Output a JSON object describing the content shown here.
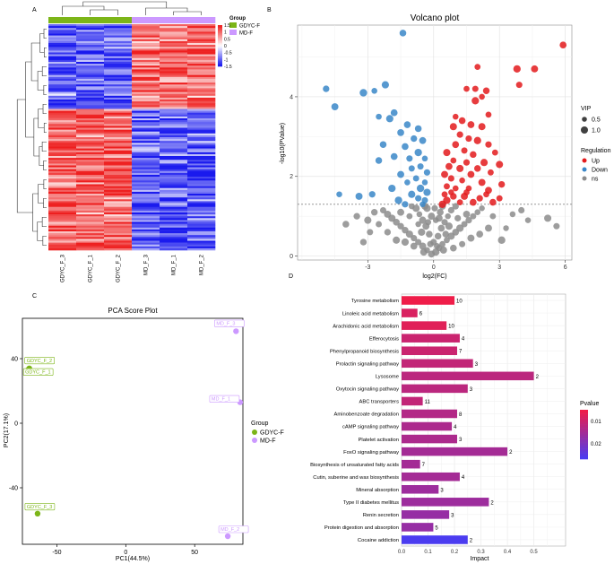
{
  "panel_labels": {
    "A": "A",
    "B": "B",
    "C": "C",
    "D": "D"
  },
  "colors": {
    "gdyc": "#7cb518",
    "md": "#cc99ff",
    "up": "#e31a1c",
    "down": "#3a87c8",
    "ns": "#8c8c8c",
    "heat_high": "#ee1f1f",
    "heat_low": "#1a1aee",
    "bar_low_p": "#ef1d49",
    "bar_high_p": "#4b3cf0"
  },
  "chart_data": [
    {
      "type": "heatmap",
      "columns": [
        "GDYC_F_3",
        "GDYC_F_1",
        "GDYC_F_2",
        "MD_F_3",
        "MD_F_1",
        "MD_F_2"
      ],
      "column_groups": [
        "GDYC-F",
        "GDYC-F",
        "GDYC-F",
        "MD-F",
        "MD-F",
        "MD-F"
      ],
      "legend_title": "Group",
      "groups": [
        "GDYC-F",
        "MD-F"
      ],
      "scale_ticks": [
        "1.5",
        "1",
        "0.5",
        "0",
        "-0.5",
        "-1",
        "-1.5"
      ],
      "scale_range": [
        -1.5,
        1.5
      ],
      "row_count": 120
    },
    {
      "type": "scatter",
      "title": "Volcano plot",
      "xlabel": "log2(FC)",
      "ylabel": "-log10(PValue)",
      "xlim": [
        -6.2,
        6.3
      ],
      "ylim": [
        -0.1,
        5.8
      ],
      "xticks": [
        -3,
        0,
        3,
        6
      ],
      "yticks": [
        0,
        2,
        4
      ],
      "threshold_y": 1.3,
      "size_legend_title": "VIP",
      "size_legend": [
        "0.5",
        "1.0"
      ],
      "color_legend_title": "Regulation",
      "color_legend": [
        "Up",
        "Down",
        "ns"
      ],
      "up_points": [
        [
          5.9,
          5.3
        ],
        [
          3.8,
          4.7
        ],
        [
          4.6,
          4.7
        ],
        [
          3.9,
          4.3
        ],
        [
          2.0,
          4.75
        ],
        [
          2.4,
          4.15
        ],
        [
          1.9,
          4.2
        ],
        [
          2.2,
          4.0
        ],
        [
          1.5,
          4.2
        ],
        [
          1.9,
          3.9
        ],
        [
          2.5,
          3.55
        ],
        [
          1.0,
          3.5
        ],
        [
          1.3,
          3.4
        ],
        [
          0.9,
          3.25
        ],
        [
          1.7,
          3.3
        ],
        [
          2.2,
          3.25
        ],
        [
          1.2,
          3.05
        ],
        [
          1.6,
          2.95
        ],
        [
          2.0,
          2.9
        ],
        [
          2.5,
          2.8
        ],
        [
          1.0,
          2.8
        ],
        [
          1.4,
          2.65
        ],
        [
          2.8,
          2.6
        ],
        [
          0.6,
          2.6
        ],
        [
          1.8,
          2.55
        ],
        [
          0.9,
          2.4
        ],
        [
          1.5,
          2.35
        ],
        [
          2.3,
          2.35
        ],
        [
          3.0,
          2.3
        ],
        [
          0.7,
          2.25
        ],
        [
          1.2,
          2.2
        ],
        [
          2.0,
          2.2
        ],
        [
          2.6,
          2.1
        ],
        [
          0.5,
          2.05
        ],
        [
          1.7,
          2.05
        ],
        [
          0.8,
          1.95
        ],
        [
          1.3,
          1.9
        ],
        [
          2.2,
          1.85
        ],
        [
          3.1,
          1.8
        ],
        [
          0.6,
          1.75
        ],
        [
          1.0,
          1.7
        ],
        [
          1.6,
          1.7
        ],
        [
          2.5,
          1.65
        ],
        [
          0.5,
          1.55
        ],
        [
          0.9,
          1.5
        ],
        [
          1.4,
          1.5
        ],
        [
          2.1,
          1.45
        ],
        [
          3.0,
          1.45
        ],
        [
          0.6,
          1.4
        ],
        [
          1.2,
          1.35
        ],
        [
          1.8,
          1.35
        ],
        [
          2.7,
          1.35
        ],
        [
          0.4,
          1.3
        ],
        [
          1.5,
          1.6
        ],
        [
          2.4,
          1.55
        ],
        [
          0.8,
          1.6
        ]
      ],
      "down_points": [
        [
          -1.4,
          5.6
        ],
        [
          -4.9,
          4.2
        ],
        [
          -3.2,
          4.1
        ],
        [
          -2.7,
          4.15
        ],
        [
          -2.2,
          4.3
        ],
        [
          -4.5,
          3.75
        ],
        [
          -1.8,
          3.6
        ],
        [
          -2.5,
          3.5
        ],
        [
          -2.0,
          3.45
        ],
        [
          -1.2,
          3.3
        ],
        [
          -0.7,
          3.2
        ],
        [
          -1.5,
          3.1
        ],
        [
          -0.9,
          2.95
        ],
        [
          -0.5,
          2.9
        ],
        [
          -1.3,
          2.75
        ],
        [
          -2.3,
          2.8
        ],
        [
          -0.7,
          2.6
        ],
        [
          -0.4,
          2.45
        ],
        [
          -1.1,
          2.45
        ],
        [
          -1.8,
          2.5
        ],
        [
          -2.5,
          2.4
        ],
        [
          -0.6,
          2.25
        ],
        [
          -1.0,
          2.2
        ],
        [
          -0.3,
          2.1
        ],
        [
          -1.5,
          2.05
        ],
        [
          -0.8,
          1.95
        ],
        [
          -0.4,
          1.85
        ],
        [
          -1.2,
          1.85
        ],
        [
          -0.6,
          1.7
        ],
        [
          -1.9,
          1.7
        ],
        [
          -0.3,
          1.6
        ],
        [
          -1.0,
          1.55
        ],
        [
          -2.8,
          1.55
        ],
        [
          -0.7,
          1.45
        ],
        [
          -0.4,
          1.4
        ],
        [
          -1.6,
          1.4
        ],
        [
          -4.3,
          1.55
        ],
        [
          -3.4,
          1.5
        ],
        [
          -0.5,
          1.3
        ],
        [
          -1.3,
          1.3
        ]
      ],
      "ns_points": [
        [
          -0.1,
          0.05
        ],
        [
          0.1,
          0.1
        ],
        [
          0.25,
          0.2
        ],
        [
          -0.3,
          0.15
        ],
        [
          0.4,
          0.3
        ],
        [
          -0.5,
          0.25
        ],
        [
          0.6,
          0.4
        ],
        [
          -0.7,
          0.35
        ],
        [
          0.8,
          0.5
        ],
        [
          -0.9,
          0.45
        ],
        [
          1.0,
          0.6
        ],
        [
          -1.1,
          0.55
        ],
        [
          1.2,
          0.7
        ],
        [
          -1.3,
          0.65
        ],
        [
          1.4,
          0.8
        ],
        [
          -1.5,
          0.75
        ],
        [
          1.6,
          0.9
        ],
        [
          -1.7,
          0.85
        ],
        [
          1.8,
          1.0
        ],
        [
          -1.9,
          0.95
        ],
        [
          2.0,
          1.1
        ],
        [
          -2.1,
          1.05
        ],
        [
          2.2,
          1.2
        ],
        [
          -2.3,
          1.15
        ],
        [
          0.0,
          0.35
        ],
        [
          0.2,
          0.5
        ],
        [
          -0.2,
          0.55
        ],
        [
          0.35,
          0.7
        ],
        [
          -0.35,
          0.75
        ],
        [
          0.5,
          0.85
        ],
        [
          -0.5,
          0.9
        ],
        [
          0.65,
          1.0
        ],
        [
          -0.65,
          1.05
        ],
        [
          0.8,
          1.15
        ],
        [
          -0.8,
          1.2
        ],
        [
          0.1,
          0.9
        ],
        [
          -0.1,
          1.0
        ],
        [
          0.3,
          1.1
        ],
        [
          -0.3,
          1.2
        ],
        [
          0.05,
          1.2
        ],
        [
          0.45,
          0.15
        ],
        [
          -0.45,
          0.1
        ],
        [
          0.9,
          0.2
        ],
        [
          -0.9,
          0.25
        ],
        [
          1.3,
          0.3
        ],
        [
          -1.3,
          0.35
        ],
        [
          1.7,
          0.45
        ],
        [
          -1.7,
          0.4
        ],
        [
          2.1,
          0.55
        ],
        [
          -2.1,
          0.6
        ],
        [
          2.5,
          0.7
        ],
        [
          -2.5,
          0.8
        ],
        [
          2.7,
          1.0
        ],
        [
          -2.7,
          1.1
        ],
        [
          0.15,
          0.25
        ],
        [
          -0.15,
          0.3
        ],
        [
          0.55,
          0.55
        ],
        [
          -0.55,
          0.6
        ],
        [
          1.1,
          0.95
        ],
        [
          -1.1,
          1.0
        ],
        [
          1.5,
          1.05
        ],
        [
          -1.5,
          1.1
        ],
        [
          0.7,
          0.75
        ],
        [
          -0.7,
          0.8
        ],
        [
          0.25,
          0.95
        ],
        [
          -0.25,
          0.85
        ],
        [
          4.0,
          1.15
        ],
        [
          5.2,
          0.95
        ],
        [
          5.6,
          0.75
        ],
        [
          4.3,
          0.9
        ],
        [
          -3.5,
          1.0
        ],
        [
          -3.0,
          0.9
        ],
        [
          -4.0,
          0.8
        ],
        [
          3.3,
          0.7
        ],
        [
          3.6,
          1.05
        ],
        [
          -2.9,
          0.6
        ],
        [
          3.1,
          0.4
        ],
        [
          -3.2,
          0.35
        ],
        [
          0.4,
          1.25
        ],
        [
          -0.4,
          1.25
        ],
        [
          1.0,
          1.25
        ],
        [
          -1.0,
          1.25
        ]
      ]
    },
    {
      "type": "scatter",
      "title": "PCA Score Plot",
      "xlabel": "PC1(44.5%)",
      "ylabel": "PC2(17.1%)",
      "xlim": [
        -75,
        85
      ],
      "ylim": [
        -75,
        65
      ],
      "xticks": [
        -50,
        0,
        50
      ],
      "yticks": [
        -40,
        0,
        40
      ],
      "legend_title": "Group",
      "legend": [
        "GDYC-F",
        "MD-F"
      ],
      "points": [
        {
          "label": "GDYC_F_2",
          "group": "GDYC-F",
          "x": -70,
          "y": 34
        },
        {
          "label": "GDYC_F_1",
          "group": "GDYC-F",
          "x": -71,
          "y": 33
        },
        {
          "label": "GDYC_F_3",
          "group": "GDYC-F",
          "x": -64,
          "y": -56
        },
        {
          "label": "MD_F_3",
          "group": "MD-F",
          "x": 80,
          "y": 57
        },
        {
          "label": "MD_F_1",
          "group": "MD-F",
          "x": 83,
          "y": 13
        },
        {
          "label": "MD_F_2",
          "group": "MD-F",
          "x": 74,
          "y": -70
        }
      ]
    },
    {
      "type": "bar",
      "orientation": "horizontal",
      "xlabel": "Impact",
      "xlim": [
        0,
        0.62
      ],
      "xticks": [
        "0.0",
        "0.1",
        "0.2",
        "0.3",
        "0.4",
        "0.5"
      ],
      "legend_title": "Pvalue",
      "legend_ticks": [
        "0.01",
        "0.02"
      ],
      "categories": [
        "Tyrosine metabolism",
        "Linoleic acid metabolism",
        "Arachidonic acid metabolism",
        "Efferocytosis",
        "Phenylpropanoid biosynthesis",
        "Prolactin signaling pathway",
        "Lysosome",
        "Oxytocin signaling pathway",
        "ABC transporters",
        "Aminobenzoate degradation",
        "cAMP signaling pathway",
        "Platelet activation",
        "FoxO signaling pathway",
        "Biosynthesis of unsaturated fatty acids",
        "Cutin, suberine and wax biosynthesis",
        "Mineral absorption",
        "Type II diabetes mellitus",
        "Renin secretion",
        "Protein digestion and absorption",
        "Cocaine addiction"
      ],
      "values": [
        0.2,
        0.06,
        0.17,
        0.22,
        0.21,
        0.27,
        0.5,
        0.25,
        0.08,
        0.21,
        0.19,
        0.21,
        0.4,
        0.07,
        0.22,
        0.14,
        0.33,
        0.18,
        0.12,
        0.25
      ],
      "labels": [
        "10",
        "6",
        "10",
        "4",
        "7",
        "3",
        "2",
        "3",
        "11",
        "8",
        "4",
        "3",
        "2",
        "7",
        "4",
        "3",
        "2",
        "3",
        "5",
        "2"
      ],
      "pvalues": [
        0.003,
        0.006,
        0.005,
        0.008,
        0.008,
        0.009,
        0.01,
        0.01,
        0.009,
        0.011,
        0.012,
        0.012,
        0.013,
        0.013,
        0.013,
        0.014,
        0.014,
        0.015,
        0.015,
        0.025
      ]
    }
  ]
}
